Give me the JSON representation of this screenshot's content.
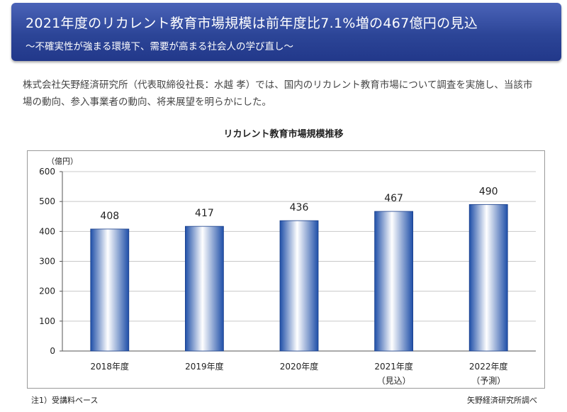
{
  "header": {
    "title": "2021年度のリカレント教育市場規模は前年度比7.1%増の467億円の見込",
    "subtitle": "～不確実性が強まる環境下、需要が高まる社会人の学び直し～"
  },
  "intro": "株式会社矢野経済研究所（代表取締役社長：水越 孝）では、国内のリカレント教育市場について調査を実施し、当該市場の動向、参入事業者の動向、将来展望を明らかにした。",
  "notes": {
    "left": "注1）受講料ベース",
    "right": "矢野経済研究所調べ"
  },
  "colors": {
    "header": "#2c4597",
    "bar_edge": "#1f4fa8",
    "bar_light": "#ffffff"
  },
  "chart_data": {
    "type": "bar",
    "title": "リカレント教育市場規模推移",
    "ylabel": "（億円）",
    "xlabel": "",
    "categories": [
      "2018年度",
      "2019年度",
      "2020年度",
      "2021年度",
      "2022年度"
    ],
    "category_sublabels": [
      "",
      "",
      "",
      "（見込）",
      "（予測）"
    ],
    "values": [
      408,
      417,
      436,
      467,
      490
    ],
    "ylim": [
      0,
      600
    ],
    "yticks": [
      0,
      100,
      200,
      300,
      400,
      500,
      600
    ],
    "grid": true,
    "legend": "none"
  }
}
